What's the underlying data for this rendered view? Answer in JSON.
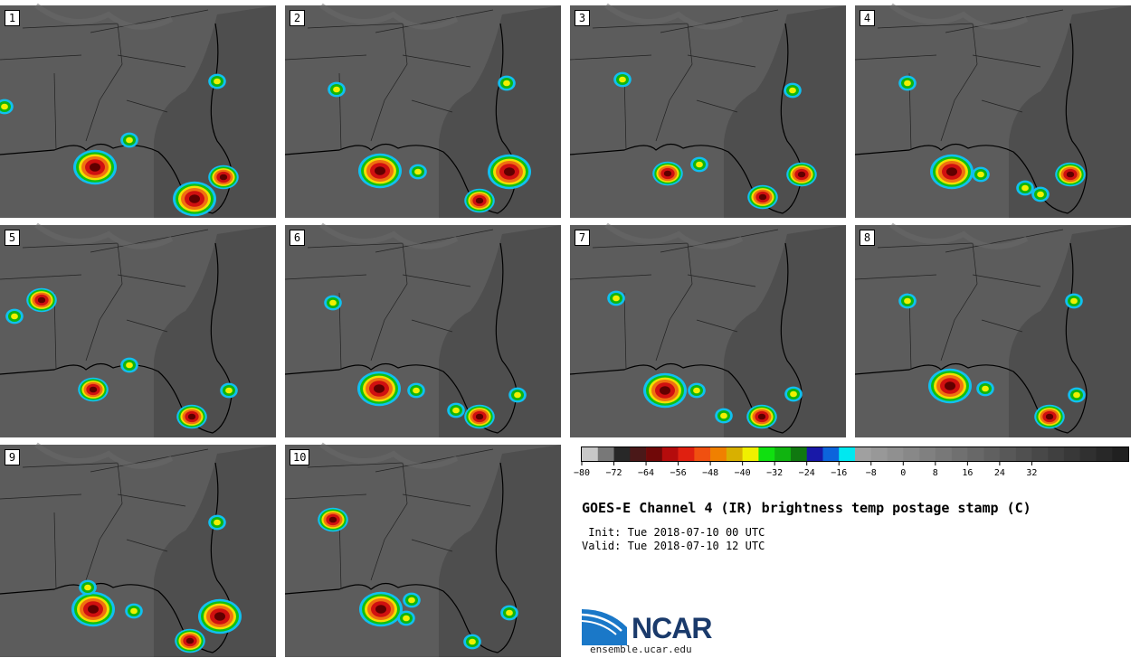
{
  "panels": [
    {
      "label": "1",
      "storms": [
        [
          105,
          185,
          "big"
        ],
        [
          215,
          220,
          "big"
        ],
        [
          247,
          196,
          "med"
        ],
        [
          143,
          155,
          "small"
        ],
        [
          240,
          90,
          "small"
        ],
        [
          5,
          118,
          "small"
        ]
      ]
    },
    {
      "label": "2",
      "storms": [
        [
          420,
          189,
          "big"
        ],
        [
          530,
          222,
          "med"
        ],
        [
          563,
          190,
          "big"
        ],
        [
          372,
          99,
          "small"
        ],
        [
          560,
          92,
          "small"
        ],
        [
          462,
          190,
          "small"
        ]
      ]
    },
    {
      "label": "3",
      "storms": [
        [
          738,
          192,
          "med"
        ],
        [
          843,
          218,
          "med"
        ],
        [
          886,
          193,
          "med"
        ],
        [
          688,
          88,
          "small"
        ],
        [
          876,
          100,
          "small"
        ],
        [
          773,
          182,
          "small"
        ]
      ]
    },
    {
      "label": "4",
      "storms": [
        [
          1052,
          190,
          "big"
        ],
        [
          1183,
          193,
          "med"
        ],
        [
          1150,
          215,
          "small"
        ],
        [
          1003,
          92,
          "small"
        ],
        [
          1084,
          193,
          "small"
        ],
        [
          1133,
          208,
          "small"
        ]
      ]
    },
    {
      "label": "5",
      "storms": [
        [
          103,
          431,
          "med"
        ],
        [
          212,
          461,
          "med"
        ],
        [
          253,
          432,
          "small"
        ],
        [
          46,
          332,
          "med"
        ],
        [
          16,
          350,
          "small"
        ],
        [
          143,
          404,
          "small"
        ]
      ]
    },
    {
      "label": "6",
      "storms": [
        [
          419,
          430,
          "big"
        ],
        [
          530,
          461,
          "med"
        ],
        [
          572,
          437,
          "small"
        ],
        [
          368,
          335,
          "small"
        ],
        [
          460,
          432,
          "small"
        ],
        [
          504,
          454,
          "small"
        ]
      ]
    },
    {
      "label": "7",
      "storms": [
        [
          735,
          432,
          "big"
        ],
        [
          842,
          461,
          "med"
        ],
        [
          877,
          436,
          "small"
        ],
        [
          681,
          330,
          "small"
        ],
        [
          770,
          432,
          "small"
        ],
        [
          800,
          460,
          "small"
        ]
      ]
    },
    {
      "label": "8",
      "storms": [
        [
          1050,
          427,
          "big"
        ],
        [
          1160,
          461,
          "med"
        ],
        [
          1190,
          437,
          "small"
        ],
        [
          1003,
          333,
          "small"
        ],
        [
          1089,
          430,
          "small"
        ],
        [
          1187,
          333,
          "small"
        ]
      ]
    },
    {
      "label": "9",
      "storms": [
        [
          103,
          674,
          "big"
        ],
        [
          243,
          682,
          "big"
        ],
        [
          210,
          709,
          "med"
        ],
        [
          97,
          650,
          "small"
        ],
        [
          148,
          676,
          "small"
        ],
        [
          240,
          578,
          "small"
        ]
      ]
    },
    {
      "label": "10",
      "storms": [
        [
          421,
          674,
          "big"
        ],
        [
          368,
          575,
          "med"
        ],
        [
          563,
          678,
          "small"
        ],
        [
          522,
          710,
          "small"
        ],
        [
          455,
          664,
          "small"
        ],
        [
          449,
          684,
          "small"
        ]
      ]
    }
  ],
  "colorbar": {
    "colors": [
      "#c8c8c8",
      "#787878",
      "#282828",
      "#4a1818",
      "#700808",
      "#b40c0c",
      "#e02010",
      "#f05010",
      "#f08000",
      "#d8b000",
      "#f0f000",
      "#10e010",
      "#10b410",
      "#107810",
      "#1818a8",
      "#0c64dc",
      "#00e8f0",
      "#a0a0a0",
      "#989898",
      "#909090",
      "#888888",
      "#808080",
      "#787878",
      "#707070",
      "#686868",
      "#606060",
      "#585858",
      "#505050",
      "#484848",
      "#404040",
      "#383838",
      "#303030",
      "#282828",
      "#202020"
    ],
    "ticks": [
      "−80",
      "−72",
      "−64",
      "−56",
      "−48",
      "−40",
      "−32",
      "−24",
      "−16",
      "−8",
      "0",
      "8",
      "16",
      "24",
      "32"
    ]
  },
  "title": "GOES-E Channel 4 (IR) brightness temp postage stamp (C)",
  "init": " Init: Tue 2018-07-10 00 UTC",
  "valid": "Valid: Tue 2018-07-10 12 UTC",
  "logo": {
    "text": "NCAR",
    "url": "ensemble.ucar.edu"
  }
}
